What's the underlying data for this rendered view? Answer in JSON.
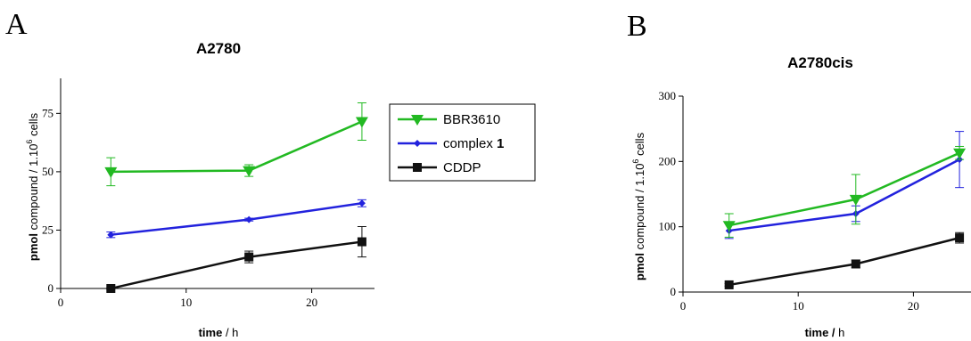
{
  "colors": {
    "BBR3610": "#22b922",
    "complex1": "#2222dd",
    "CDDP": "#111111"
  },
  "legend": {
    "entries": [
      {
        "key": "BBR3610",
        "label": "BBR3610",
        "suffix": "",
        "marker": "triangle-down"
      },
      {
        "key": "complex1",
        "label": "complex ",
        "suffix": "1",
        "marker": "diamond"
      },
      {
        "key": "CDDP",
        "label": "CDDP",
        "suffix": "",
        "marker": "square"
      }
    ]
  },
  "chart_data": [
    {
      "type": "line",
      "panel": "A",
      "title": "A2780",
      "xlabel_bold": "time",
      "xlabel_rest": " / h",
      "ylabel_bold": "pmol",
      "ylabel_rest": " compound / 1.10",
      "ylabel_sup": "6",
      "ylabel_end": " cells",
      "xlim": [
        0,
        25
      ],
      "ylim": [
        0,
        90
      ],
      "xticks": [
        0,
        10,
        20
      ],
      "yticks": [
        0,
        25,
        50,
        75
      ],
      "series": [
        {
          "key": "BBR3610",
          "name": "BBR3610",
          "x": [
            4,
            15,
            24
          ],
          "y": [
            50,
            50.5,
            71.5
          ],
          "err": [
            6,
            2.5,
            8
          ]
        },
        {
          "key": "complex1",
          "name": "complex 1",
          "x": [
            4,
            15,
            24
          ],
          "y": [
            23,
            29.5,
            36.5
          ],
          "err": [
            1.2,
            0.6,
            1.5
          ]
        },
        {
          "key": "CDDP",
          "name": "CDDP",
          "x": [
            4,
            15,
            24
          ],
          "y": [
            0,
            13.5,
            20
          ],
          "err": [
            0.3,
            2.5,
            6.5
          ]
        }
      ]
    },
    {
      "type": "line",
      "panel": "B",
      "title": "A2780cis",
      "xlabel_bold": "time /",
      "xlabel_rest": " h",
      "ylabel_bold": "pmol",
      "ylabel_rest": " compound / 1.10",
      "ylabel_sup": "6",
      "ylabel_end": " cells",
      "xlim": [
        0,
        25
      ],
      "ylim": [
        0,
        300
      ],
      "xticks": [
        0,
        10,
        20
      ],
      "yticks": [
        0,
        100,
        200,
        300
      ],
      "series": [
        {
          "key": "BBR3610",
          "name": "BBR3610",
          "x": [
            4,
            15,
            24
          ],
          "y": [
            102,
            142,
            213
          ],
          "err": [
            18,
            38,
            10
          ]
        },
        {
          "key": "complex1",
          "name": "complex 1",
          "x": [
            4,
            15,
            24
          ],
          "y": [
            94,
            120,
            203
          ],
          "err": [
            12,
            12,
            43
          ]
        },
        {
          "key": "CDDP",
          "name": "CDDP",
          "x": [
            4,
            15,
            24
          ],
          "y": [
            11,
            43,
            83
          ],
          "err": [
            2,
            6,
            8
          ]
        }
      ]
    }
  ]
}
